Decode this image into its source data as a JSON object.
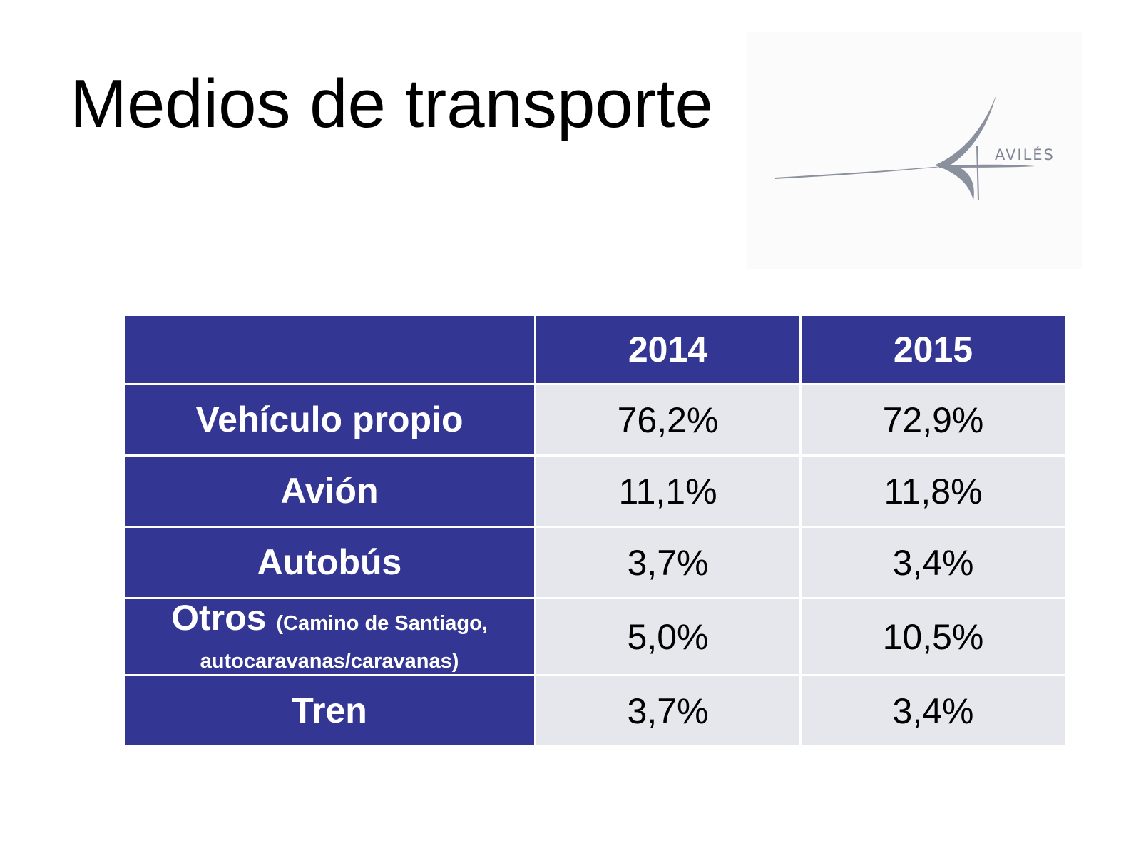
{
  "slide": {
    "title": "Medios de transporte"
  },
  "logo": {
    "text": "AVILÉS"
  },
  "table": {
    "headers": [
      "",
      "2014",
      "2015"
    ],
    "rows": [
      {
        "label": "Vehículo propio",
        "label_note": "",
        "v2014": "76,2%",
        "v2015": "72,9%"
      },
      {
        "label": "Avión",
        "label_note": "",
        "v2014": "11,1%",
        "v2015": "11,8%"
      },
      {
        "label": "Autobús",
        "label_note": "",
        "v2014": "3,7%",
        "v2015": "3,4%"
      },
      {
        "label": "Otros",
        "label_note": "(Camino de Santiago, autocaravanas/caravanas)",
        "v2014": "5,0%",
        "v2015": "10,5%"
      },
      {
        "label": "Tren",
        "label_note": "",
        "v2014": "3,7%",
        "v2015": "3,4%"
      }
    ]
  },
  "colors": {
    "header_bg": "#343694",
    "value_bg": "#e6e7ec",
    "logo_gray": "#8a909d"
  }
}
